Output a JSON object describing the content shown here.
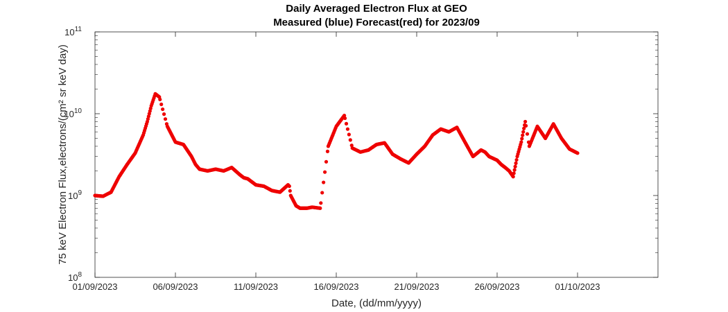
{
  "chart_data": {
    "type": "scatter",
    "title": "Daily Averaged Electron Flux at GEO",
    "subtitle": "Measured (blue) Forecast(red) for 2023/09",
    "xlabel": "Date, (dd/mm/yyyy)",
    "ylabel": "75 keV Electron Flux,electrons/(cm² sr keV day)",
    "yscale": "log",
    "ylim": [
      100000000.0,
      100000000000.0
    ],
    "xlim": [
      "2023-09-01",
      "2023-10-06"
    ],
    "x_ticks": [
      "01/09/2023",
      "06/09/2023",
      "11/09/2023",
      "16/09/2023",
      "21/09/2023",
      "26/09/2023",
      "01/10/2023"
    ],
    "y_ticks": [
      {
        "base": "10",
        "exp": "8"
      },
      {
        "base": "10",
        "exp": "9"
      },
      {
        "base": "10",
        "exp": "10"
      },
      {
        "base": "10",
        "exp": "11"
      }
    ],
    "grid": false,
    "series": [
      {
        "color": "#ee0000",
        "x": [
          "2023-09-01 00:00",
          "2023-09-01 12:00",
          "2023-09-02 00:00",
          "2023-09-02 12:00",
          "2023-09-03 00:00",
          "2023-09-03 12:00",
          "2023-09-04 00:00",
          "2023-09-04 06:00",
          "2023-09-04 12:00",
          "2023-09-04 18:00",
          "2023-09-05 00:00",
          "2023-09-05 12:00",
          "2023-09-06 00:00",
          "2023-09-06 12:00",
          "2023-09-07 00:00",
          "2023-09-07 06:00",
          "2023-09-07 12:00",
          "2023-09-08 00:00",
          "2023-09-08 12:00",
          "2023-09-09 00:00",
          "2023-09-09 12:00",
          "2023-09-10 00:00",
          "2023-09-10 06:00",
          "2023-09-10 12:00",
          "2023-09-11 00:00",
          "2023-09-11 12:00",
          "2023-09-12 00:00",
          "2023-09-12 12:00",
          "2023-09-13 00:00",
          "2023-09-13 02:00",
          "2023-09-13 04:00",
          "2023-09-13 12:00",
          "2023-09-13 18:00",
          "2023-09-14 00:00",
          "2023-09-14 04:00",
          "2023-09-14 12:00",
          "2023-09-15 00:00",
          "2023-09-15 12:00",
          "2023-09-16 00:00",
          "2023-09-16 12:00",
          "2023-09-17 00:00",
          "2023-09-17 12:00",
          "2023-09-18 00:00",
          "2023-09-18 12:00",
          "2023-09-19 00:00",
          "2023-09-19 12:00",
          "2023-09-20 00:00",
          "2023-09-20 12:00",
          "2023-09-21 00:00",
          "2023-09-21 12:00",
          "2023-09-22 00:00",
          "2023-09-22 12:00",
          "2023-09-23 00:00",
          "2023-09-23 12:00",
          "2023-09-24 00:00",
          "2023-09-24 12:00",
          "2023-09-25 00:00",
          "2023-09-25 06:00",
          "2023-09-25 12:00",
          "2023-09-26 00:00",
          "2023-09-26 06:00",
          "2023-09-26 12:00",
          "2023-09-26 18:00",
          "2023-09-27 00:00",
          "2023-09-27 06:00",
          "2023-09-27 12:00",
          "2023-09-27 18:00",
          "2023-09-28 00:00",
          "2023-09-28 12:00",
          "2023-09-29 00:00",
          "2023-09-29 12:00",
          "2023-09-30 00:00",
          "2023-09-30 12:00",
          "2023-10-01 00:00"
        ],
        "y": [
          1000000000.0,
          980000000.0,
          1100000000.0,
          1700000000.0,
          2400000000.0,
          3300000000.0,
          5500000000.0,
          8000000000.0,
          12500000000.0,
          17500000000.0,
          16000000000.0,
          7000000000.0,
          4500000000.0,
          4200000000.0,
          3000000000.0,
          2400000000.0,
          2100000000.0,
          2000000000.0,
          2100000000.0,
          2000000000.0,
          2200000000.0,
          1800000000.0,
          1650000000.0,
          1600000000.0,
          1350000000.0,
          1300000000.0,
          1150000000.0,
          1100000000.0,
          1350000000.0,
          1300000000.0,
          1000000000.0,
          750000000.0,
          700000000.0,
          700000000.0,
          700000000.0,
          720000000.0,
          700000000.0,
          4000000000.0,
          7000000000.0,
          9500000000.0,
          3800000000.0,
          3400000000.0,
          3600000000.0,
          4200000000.0,
          4400000000.0,
          3200000000.0,
          2800000000.0,
          2500000000.0,
          3200000000.0,
          4000000000.0,
          5500000000.0,
          6500000000.0,
          6000000000.0,
          6800000000.0,
          4500000000.0,
          3000000000.0,
          3600000000.0,
          3400000000.0,
          3000000000.0,
          2700000000.0,
          2400000000.0,
          2200000000.0,
          2000000000.0,
          1700000000.0,
          3000000000.0,
          4500000000.0,
          8000000000.0,
          4000000000.0,
          7000000000.0,
          5000000000.0,
          7500000000.0,
          5000000000.0,
          3700000000.0,
          3300000000.0
        ]
      }
    ]
  }
}
